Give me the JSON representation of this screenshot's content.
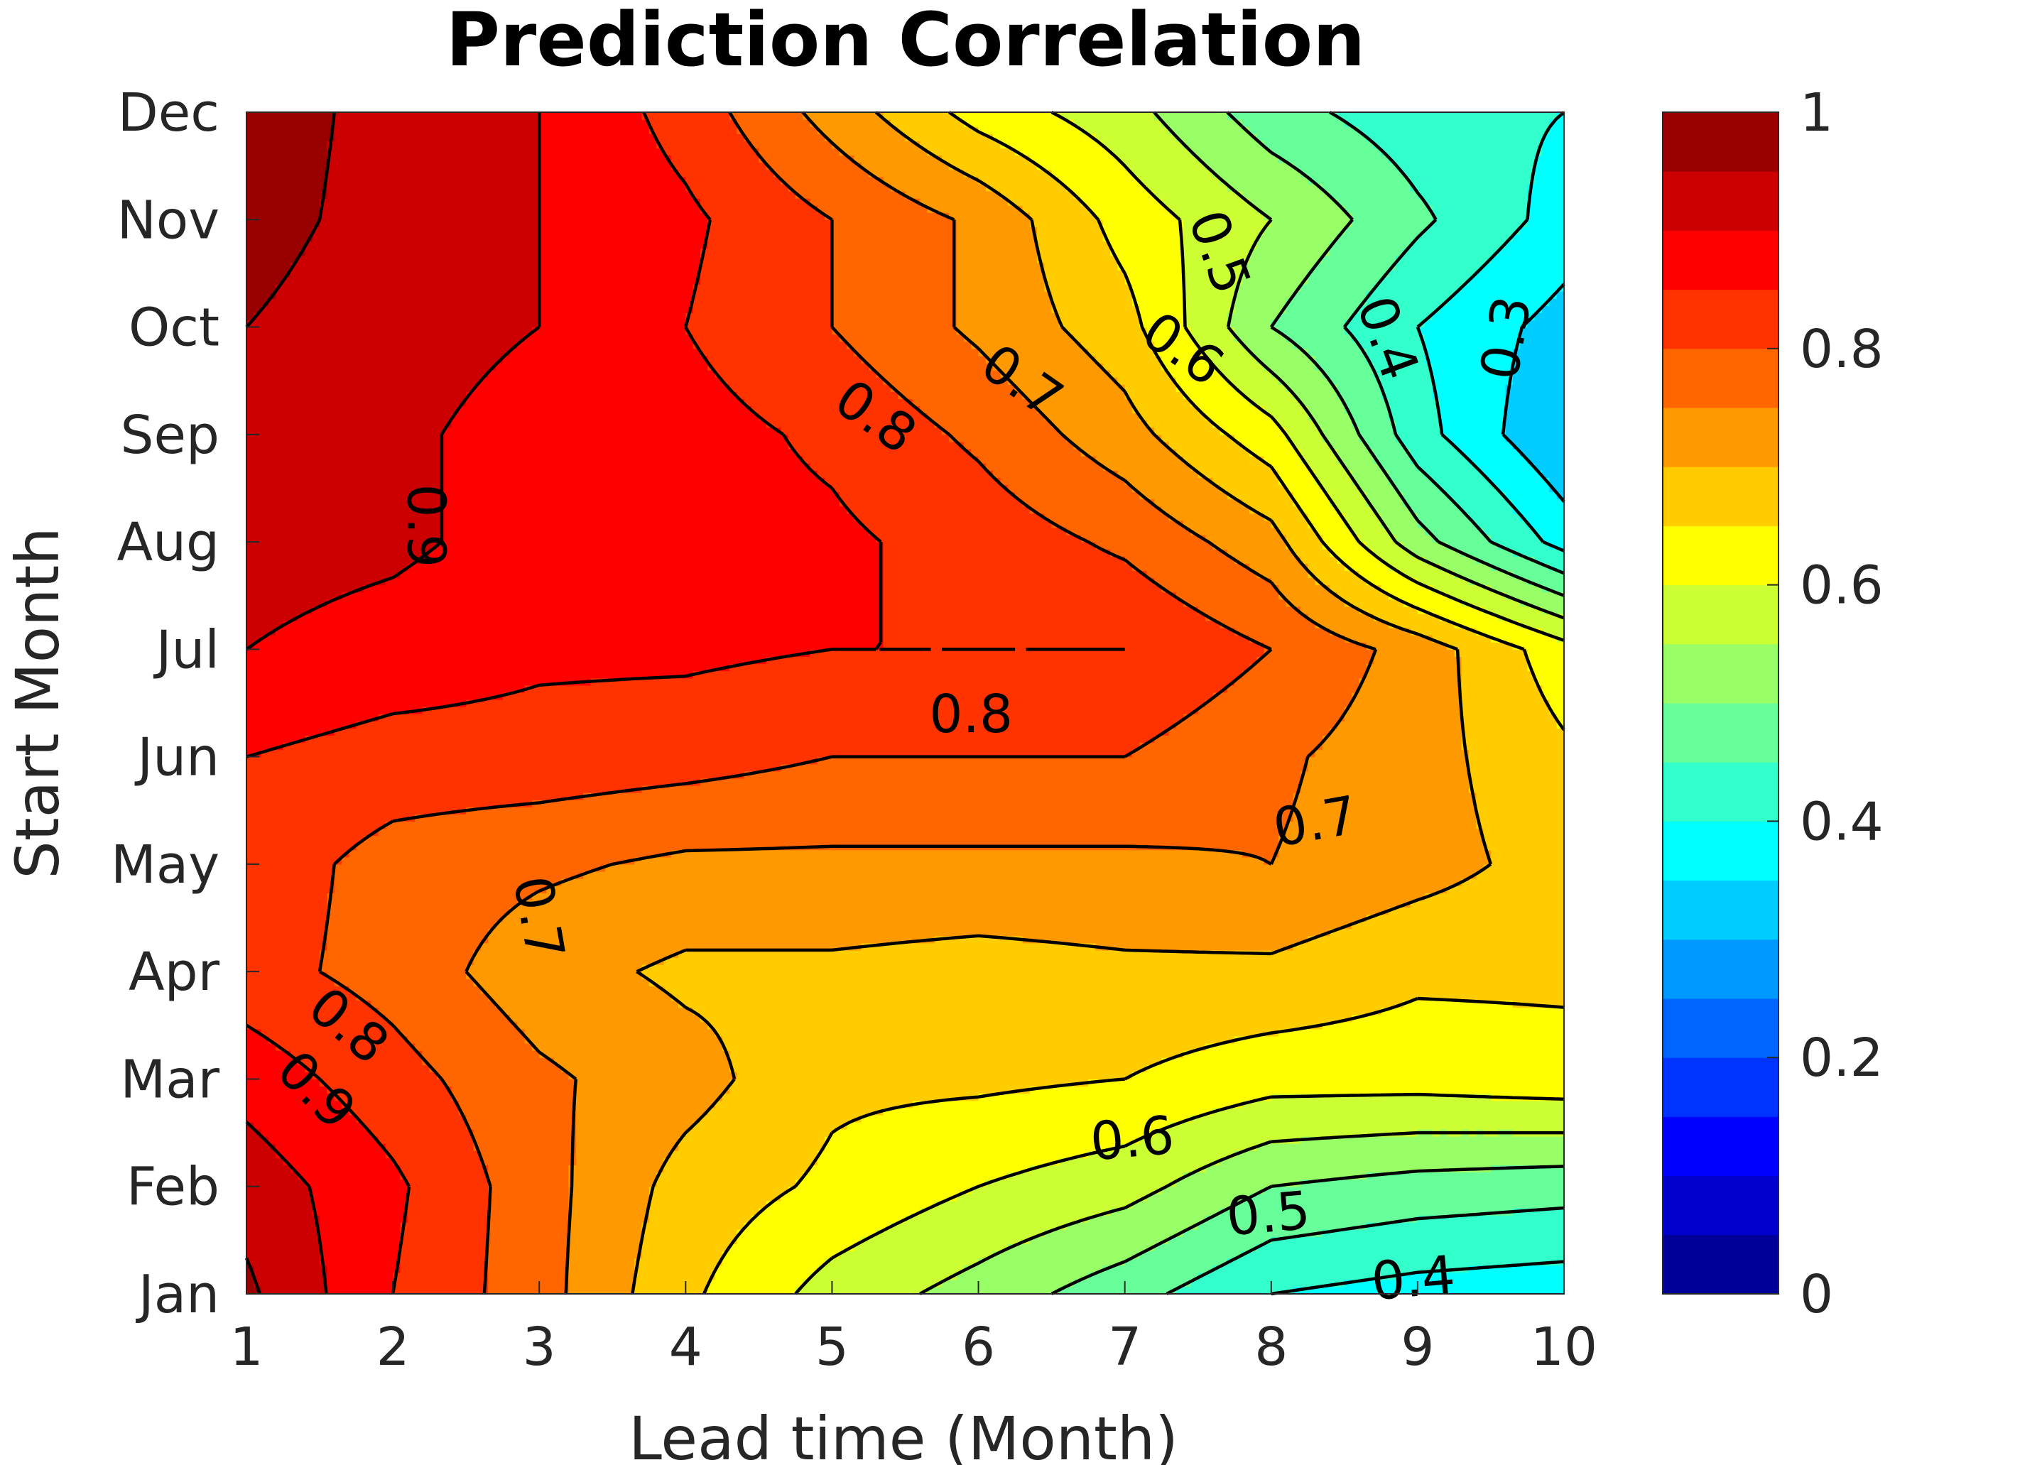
{
  "chart_data": {
    "type": "contour",
    "title": "Prediction Correlation",
    "xlabel": "Lead time (Month)",
    "ylabel": "Start Month",
    "x": [
      1,
      2,
      3,
      4,
      5,
      6,
      7,
      8,
      9,
      10
    ],
    "x_tick_labels": [
      "1",
      "2",
      "3",
      "4",
      "5",
      "6",
      "7",
      "8",
      "9",
      "10"
    ],
    "y_tick_labels": [
      "Jan",
      "Feb",
      "Mar",
      "Apr",
      "May",
      "Jun",
      "Jul",
      "Aug",
      "Sep",
      "Oct",
      "Nov",
      "Dec"
    ],
    "xlim": [
      1,
      10
    ],
    "colormap": "jet",
    "clim": [
      0,
      1
    ],
    "level_step": 0.05,
    "colorbar_ticks": [
      "0",
      "0.2",
      "0.4",
      "0.6",
      "0.8",
      "1"
    ],
    "colorbar_tick_values": [
      0,
      0.2,
      0.4,
      0.6,
      0.8,
      1
    ],
    "values_by_start_month": [
      [
        0.96,
        0.85,
        0.77,
        0.66,
        0.58,
        0.53,
        0.47,
        0.4,
        0.38,
        0.37
      ],
      [
        0.93,
        0.86,
        0.77,
        0.68,
        0.64,
        0.6,
        0.57,
        0.5,
        0.48,
        0.47
      ],
      [
        0.88,
        0.82,
        0.76,
        0.72,
        0.66,
        0.66,
        0.65,
        0.62,
        0.62,
        0.63
      ],
      [
        0.82,
        0.78,
        0.72,
        0.69,
        0.69,
        0.68,
        0.69,
        0.69,
        0.66,
        0.66
      ],
      [
        0.83,
        0.78,
        0.76,
        0.74,
        0.74,
        0.74,
        0.74,
        0.75,
        0.72,
        0.68
      ],
      [
        0.85,
        0.83,
        0.83,
        0.82,
        0.8,
        0.8,
        0.8,
        0.76,
        0.72,
        0.66
      ],
      [
        0.9,
        0.88,
        0.86,
        0.86,
        0.85,
        0.85,
        0.85,
        0.8,
        0.73,
        0.62
      ],
      [
        0.92,
        0.91,
        0.88,
        0.87,
        0.86,
        0.83,
        0.79,
        0.72,
        0.52,
        0.38
      ],
      [
        0.94,
        0.91,
        0.88,
        0.87,
        0.84,
        0.79,
        0.72,
        0.62,
        0.42,
        0.3
      ],
      [
        0.95,
        0.92,
        0.9,
        0.85,
        0.8,
        0.74,
        0.67,
        0.5,
        0.4,
        0.33
      ],
      [
        0.97,
        0.93,
        0.9,
        0.86,
        0.8,
        0.74,
        0.63,
        0.55,
        0.46,
        0.38
      ],
      [
        0.98,
        0.93,
        0.9,
        0.83,
        0.73,
        0.63,
        0.57,
        0.47,
        0.42,
        0.4
      ]
    ],
    "contour_line_levels": [
      0.3,
      0.35,
      0.4,
      0.45,
      0.5,
      0.55,
      0.6,
      0.65,
      0.7,
      0.75,
      0.8,
      0.85,
      0.9,
      0.95
    ],
    "contour_labels": [
      {
        "text": "0.9",
        "lead": 2.23,
        "month": "Aug"
      },
      {
        "text": "0.8",
        "lead": 5.3,
        "month": "Sep"
      },
      {
        "text": "0.7",
        "lead": 6.3,
        "month": "Sep"
      },
      {
        "text": "0.6",
        "lead": 7.4,
        "month": "Sep"
      },
      {
        "text": "0.5",
        "lead": 7.65,
        "month": "Oct"
      },
      {
        "text": "0.4",
        "lead": 8.8,
        "month": "Sep"
      },
      {
        "text": "0.3",
        "lead": 9.6,
        "month": "Sep"
      },
      {
        "text": "0.8",
        "lead": 5.95,
        "month": "Jun"
      },
      {
        "text": "0.7",
        "lead": 8.3,
        "month": "May"
      },
      {
        "text": "0.7",
        "lead": 3.0,
        "month": "Apr"
      },
      {
        "text": "0.8",
        "lead": 1.7,
        "month": "Mar"
      },
      {
        "text": "0.9",
        "lead": 1.48,
        "month": "Feb"
      },
      {
        "text": "0.6",
        "lead": 7.05,
        "month": "Feb"
      },
      {
        "text": "0.5",
        "lead": 7.98,
        "month": "Jan"
      },
      {
        "text": "0.4",
        "lead": 8.97,
        "month": "Jan"
      }
    ]
  }
}
